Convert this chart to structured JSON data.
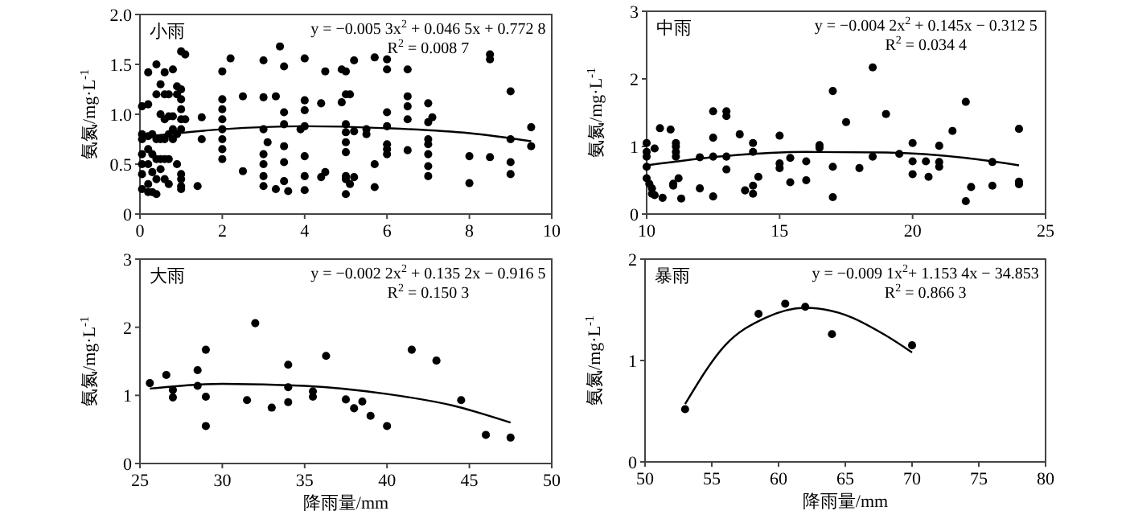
{
  "chart_data": [
    {
      "type": "scatter",
      "title": "小雨",
      "ylabel": "氨氮/mg·L$^{-1}$",
      "xlim": [
        0,
        10
      ],
      "xticks": [
        0,
        2,
        4,
        6,
        8,
        10
      ],
      "ylim": [
        0,
        2
      ],
      "yticks": [
        0,
        {
          "value": 0.5,
          "label": "0.5"
        },
        {
          "value": 1,
          "label": "1.0"
        },
        {
          "value": 1.5,
          "label": "1.5"
        },
        {
          "value": 2,
          "label": "2.0"
        }
      ],
      "annotations": [
        "y = −0.005 3x$^{2}$ + 0.046 5x + 0.772 8",
        "R$^{2}$ = 0.008 7"
      ],
      "series": [
        {
          "marker": "circle",
          "color": "#000000",
          "x": [
            0.05,
            0.05,
            0.05,
            0.05,
            0.05,
            0.05,
            0.05,
            0.2,
            0.2,
            0.2,
            0.2,
            0.2,
            0.2,
            0.2,
            0.3,
            0.3,
            0.3,
            0.3,
            0.4,
            0.4,
            0.4,
            0.4,
            0.4,
            0.4,
            0.5,
            0.5,
            0.5,
            0.5,
            0.5,
            0.6,
            0.6,
            0.6,
            0.6,
            0.6,
            0.6,
            0.7,
            0.7,
            0.7,
            0.7,
            0.7,
            0.8,
            0.8,
            0.8,
            0.8,
            0.9,
            0.9,
            0.9,
            0.9,
            1,
            1,
            1,
            1,
            1,
            1,
            1,
            1,
            1,
            1,
            1.1,
            1.1,
            1.4,
            1.5,
            1.5,
            2,
            2,
            2,
            2,
            2,
            2,
            2,
            2,
            2.2,
            2.5,
            2.5,
            3,
            3,
            3,
            3,
            3,
            3,
            3,
            3.1,
            3.3,
            3.3,
            3.4,
            3.5,
            3.5,
            3.5,
            3.5,
            3.5,
            3.5,
            3.6,
            3.9,
            4,
            4,
            4,
            4,
            4,
            4,
            4,
            4.4,
            4.4,
            4.5,
            4.5,
            4.9,
            4.9,
            5,
            5,
            5,
            5,
            5,
            5,
            5,
            5,
            5,
            5.1,
            5.1,
            5.2,
            5.2,
            5.2,
            5.5,
            5.5,
            5.7,
            5.7,
            5.7,
            6,
            6,
            6,
            6,
            6,
            6,
            6,
            6.5,
            6.5,
            6.5,
            6.5,
            6.5,
            7,
            7,
            7,
            7,
            7,
            7,
            7,
            7.1,
            8,
            8,
            8.5,
            8.5,
            8.5,
            9,
            9,
            9,
            9,
            9.5,
            9.5
          ],
          "values": [
            1.08,
            0.8,
            0.75,
            0.6,
            0.5,
            0.4,
            0.25,
            1.42,
            1.1,
            0.78,
            0.65,
            0.5,
            0.3,
            0.22,
            0.8,
            0.6,
            0.42,
            0.22,
            1.5,
            1.2,
            0.75,
            0.55,
            0.35,
            0.2,
            1.3,
            1,
            0.75,
            0.55,
            0.45,
            1.42,
            1.2,
            0.95,
            0.75,
            0.55,
            0.35,
            1.2,
            0.98,
            0.8,
            0.55,
            0.3,
            1.45,
            0.98,
            0.85,
            0.75,
            1.28,
            1.2,
            0.8,
            0.5,
            1.63,
            1.25,
            1.15,
            1.05,
            0.95,
            0.85,
            0.4,
            0.35,
            0.28,
            0.25,
            1.6,
            0.95,
            0.28,
            0.97,
            0.75,
            1.43,
            1.15,
            1.05,
            0.95,
            0.85,
            0.75,
            0.65,
            0.55,
            1.56,
            1.18,
            0.43,
            1.54,
            1.17,
            0.85,
            0.6,
            0.5,
            0.38,
            0.28,
            0.72,
            1.18,
            0.25,
            1.68,
            1.48,
            1.02,
            0.9,
            0.68,
            0.52,
            0.33,
            0.23,
            0.85,
            1.56,
            1.14,
            1.04,
            0.88,
            0.58,
            0.38,
            0.24,
            0.37,
            1.11,
            1.43,
            0.42,
            1.45,
            1.12,
            1.43,
            1.2,
            0.9,
            0.82,
            0.72,
            0.62,
            0.38,
            0.35,
            0.2,
            1.2,
            0.3,
            1.54,
            0.83,
            0.37,
            0.85,
            0.8,
            1.57,
            0.5,
            0.27,
            1.55,
            1.45,
            1.02,
            0.88,
            0.7,
            0.65,
            0.6,
            1.45,
            1.18,
            1.08,
            0.95,
            0.64,
            1.11,
            0.92,
            0.75,
            0.7,
            0.6,
            0.48,
            0.38,
            0.97,
            0.58,
            0.31,
            1.6,
            1.55,
            0.57,
            1.23,
            0.75,
            0.52,
            0.4,
            0.87,
            0.68
          ]
        },
        {
          "type": "line",
          "color": "#000000",
          "x": [
            0,
            2,
            4,
            6,
            8,
            9.5
          ],
          "values": [
            0.77,
            0.85,
            0.88,
            0.86,
            0.81,
            0.73
          ]
        }
      ]
    },
    {
      "type": "scatter",
      "title": "中雨",
      "ylabel": "氨氮/mg·L$^{-1}$",
      "xlim": [
        10,
        25
      ],
      "xticks": [
        10,
        15,
        20,
        25
      ],
      "ylim": [
        0,
        3
      ],
      "yticks": [
        0,
        1,
        2,
        3
      ],
      "annotations": [
        "y = −0.004 2x$^{2}$ + 0.145x −  0.312 5",
        "R$^{2}$ = 0.034 4"
      ],
      "series": [
        {
          "marker": "circle",
          "color": "#000000",
          "x": [
            10,
            10,
            10,
            10,
            10,
            10.1,
            10.2,
            10.2,
            10.3,
            10.3,
            10.5,
            10.6,
            10.9,
            11,
            11,
            11.1,
            11.1,
            11.1,
            11.1,
            11.2,
            11.3,
            12,
            12,
            12.5,
            12.5,
            12.5,
            12.5,
            13,
            13,
            13,
            13,
            13.5,
            13.7,
            14,
            14,
            14,
            14,
            14.2,
            15,
            15,
            15,
            15.4,
            15.4,
            16,
            16,
            16.5,
            16.5,
            17,
            17,
            17,
            17.5,
            18,
            18.5,
            18.5,
            19,
            19.5,
            20,
            20,
            20,
            20.5,
            20.6,
            21,
            21,
            21,
            21.5,
            22,
            22,
            22.2,
            23,
            23,
            24,
            24,
            24
          ],
          "values": [
            1.05,
            0.92,
            0.85,
            0.7,
            0.53,
            0.45,
            0.38,
            0.3,
            0.28,
            0.97,
            1.27,
            0.24,
            1.25,
            0.45,
            0.42,
            1.05,
            1,
            0.92,
            0.85,
            0.53,
            0.23,
            0.84,
            0.38,
            1.52,
            1.13,
            0.85,
            0.26,
            1.52,
            1.45,
            0.85,
            0.66,
            1.18,
            0.35,
            1.05,
            0.92,
            0.42,
            0.3,
            0.55,
            1.16,
            0.75,
            0.68,
            0.83,
            0.47,
            0.78,
            0.5,
            1.02,
            0.98,
            1.82,
            0.7,
            0.25,
            1.36,
            0.68,
            2.17,
            0.85,
            1.48,
            0.89,
            1.05,
            0.78,
            0.59,
            0.78,
            0.55,
            1.01,
            0.77,
            0.7,
            1.23,
            1.66,
            0.19,
            0.4,
            0.77,
            0.42,
            1.26,
            0.48,
            0.44
          ]
        },
        {
          "type": "line",
          "color": "#000000",
          "x": [
            10,
            13,
            16,
            19,
            22,
            24
          ],
          "values": [
            0.72,
            0.86,
            0.92,
            0.91,
            0.83,
            0.72
          ]
        }
      ]
    },
    {
      "type": "scatter",
      "title": "大雨",
      "xlabel": "降雨量/mm",
      "ylabel": "氨氮/mg·L$^{-1}$",
      "xlim": [
        25,
        50
      ],
      "xticks": [
        25,
        30,
        35,
        40,
        45,
        50
      ],
      "ylim": [
        0,
        3
      ],
      "yticks": [
        0,
        1,
        2,
        3
      ],
      "annotations": [
        "y = −0.002 2x$^{2}$ + 0.135 2x − 0.916 5",
        "R$^{2}$ = 0.150 3"
      ],
      "series": [
        {
          "marker": "circle",
          "color": "#000000",
          "x": [
            25.6,
            26.6,
            27,
            27,
            28.5,
            28.5,
            29,
            29,
            29,
            31.5,
            32,
            33,
            34,
            34,
            34,
            35.5,
            35.5,
            36.3,
            37.5,
            38,
            38.5,
            39,
            40,
            41.5,
            43,
            44.5,
            46,
            47.5
          ],
          "values": [
            1.18,
            1.3,
            1.08,
            0.97,
            1.37,
            1.14,
            1.67,
            0.98,
            0.55,
            0.93,
            2.06,
            0.82,
            1.45,
            1.12,
            0.9,
            1.06,
            0.98,
            1.58,
            0.94,
            0.81,
            0.91,
            0.7,
            0.55,
            1.67,
            1.51,
            0.93,
            0.42,
            0.38
          ]
        },
        {
          "type": "line",
          "color": "#000000",
          "x": [
            25.6,
            30,
            35,
            40,
            44,
            47.5
          ],
          "values": [
            1.1,
            1.17,
            1.14,
            1.02,
            0.85,
            0.6
          ]
        }
      ]
    },
    {
      "type": "scatter",
      "title": "暴雨",
      "xlabel": "降雨量/mm",
      "ylabel": "氨氮/mg·L$^{-1}$",
      "xlim": [
        50,
        80
      ],
      "xticks": [
        50,
        55,
        60,
        65,
        70,
        75,
        80
      ],
      "ylim": [
        0,
        2
      ],
      "yticks": [
        0,
        1,
        2
      ],
      "annotations": [
        "y = −0.009 1x$^{2}$+ 1.153 4x −  34.853",
        "R$^{2}$ = 0.866 3"
      ],
      "series": [
        {
          "marker": "circle",
          "color": "#000000",
          "x": [
            53,
            58.5,
            60.5,
            62,
            64,
            70
          ],
          "values": [
            0.52,
            1.46,
            1.56,
            1.53,
            1.26,
            1.15
          ]
        },
        {
          "type": "line",
          "color": "#000000",
          "x": [
            53,
            56,
            59,
            62,
            65,
            68,
            70
          ],
          "values": [
            0.57,
            1.15,
            1.42,
            1.52,
            1.45,
            1.25,
            1.08
          ]
        }
      ]
    }
  ]
}
